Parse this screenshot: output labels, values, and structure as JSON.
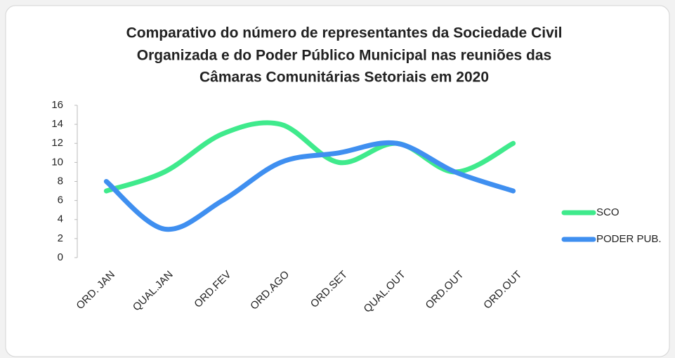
{
  "chart_data": {
    "type": "line",
    "title": [
      "Comparativo do número de representantes  da Sociedade Civil",
      "Organizada e do Poder Público Municipal nas reuniões das",
      "Câmaras Comunitárias Setoriais em 2020"
    ],
    "categories": [
      "ORD. JAN",
      "QUAL.JAN",
      "ORD.FEV",
      "ORD.AGO",
      "ORD.SET",
      "QUAL.OUT",
      "ORD.OUT",
      "ORD.OUT"
    ],
    "series": [
      {
        "name": "SCO",
        "color": "#3fea8c",
        "values": [
          7,
          9,
          13,
          14,
          10,
          12,
          9,
          12
        ]
      },
      {
        "name": "PODER PUB.",
        "color": "#3f8ff0",
        "values": [
          8,
          3,
          6,
          10,
          11,
          12,
          9,
          7
        ]
      }
    ],
    "ylim": [
      0,
      16
    ],
    "yticks": [
      0,
      2,
      4,
      6,
      8,
      10,
      12,
      14,
      16
    ],
    "grid": false,
    "smooth": true,
    "legend": "right"
  }
}
